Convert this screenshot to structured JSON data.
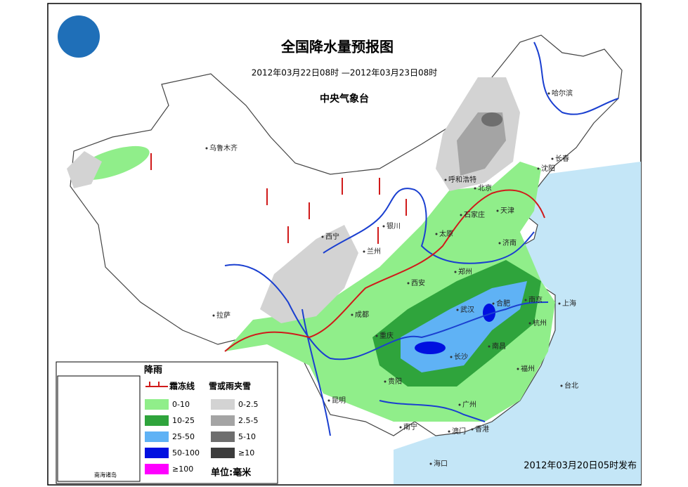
{
  "header": {
    "title": "全国降水量预报图",
    "period": "2012年03月22日08时 —2012年03月23日08时",
    "issuer": "中央气象台"
  },
  "cities": [
    "乌鲁木齐",
    "哈尔滨",
    "长春",
    "沈阳",
    "呼和浩特",
    "北京",
    "天津",
    "石家庄",
    "太原",
    "济南",
    "银川",
    "西宁",
    "兰州",
    "西安",
    "郑州",
    "合肥",
    "南京",
    "上海",
    "武汉",
    "杭州",
    "成都",
    "重庆",
    "长沙",
    "南昌",
    "拉萨",
    "福州",
    "贵阳",
    "台北",
    "昆明",
    "广州",
    "南宁",
    "澳门",
    "香港",
    "海口"
  ],
  "legend": {
    "rain_title": "降雨",
    "frost_line": "霜冻线",
    "snow_title": "雪或雨夹雪",
    "unit": "单位:毫米",
    "inset": "南海诸岛",
    "rain": [
      {
        "label": "0-10",
        "color": "#90ee8a"
      },
      {
        "label": "10-25",
        "color": "#2fa43c"
      },
      {
        "label": "25-50",
        "color": "#5fb2f5"
      },
      {
        "label": "50-100",
        "color": "#0010e0"
      },
      {
        "label": "≥100",
        "color": "#ff00ff"
      }
    ],
    "snow": [
      {
        "label": "0-2.5",
        "color": "#d3d3d3"
      },
      {
        "label": "2.5-5",
        "color": "#a4a4a4"
      },
      {
        "label": "5-10",
        "color": "#6e6e6e"
      },
      {
        "label": "≥10",
        "color": "#3c3c3c"
      }
    ]
  },
  "footer": {
    "issued": "2012年03月20日05时发布"
  }
}
